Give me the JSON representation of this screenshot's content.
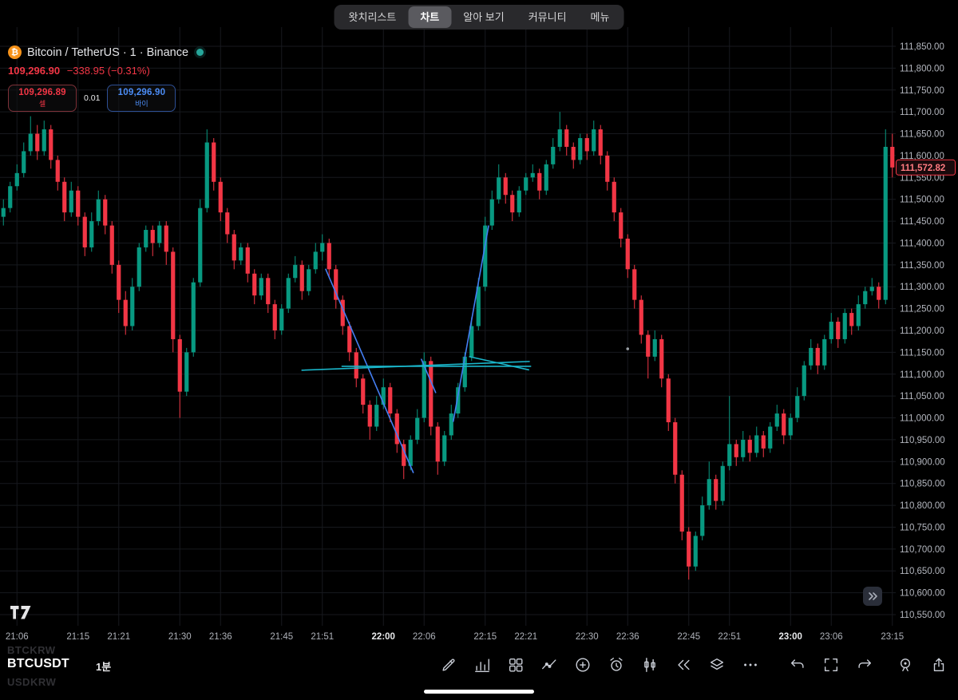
{
  "nav": {
    "items": [
      {
        "label": "왓치리스트"
      },
      {
        "label": "차트"
      },
      {
        "label": "알아 보기"
      },
      {
        "label": "커뮤니티"
      },
      {
        "label": "메뉴"
      }
    ],
    "active_index": 1
  },
  "header": {
    "title": "Bitcoin / TetherUS · 1 · Binance",
    "price": "109,296.90",
    "change": "−338.95 (−0.31%)",
    "sell_price": "109,296.89",
    "sell_label": "셀",
    "spread": "0.01",
    "buy_price": "109,296.90",
    "buy_label": "바이"
  },
  "chart_data": {
    "type": "candlestick",
    "title": "BTCUSDT 1-minute candlestick chart, Binance",
    "up_color": "#089981",
    "down_color": "#f23645",
    "grid_color": "#17191e",
    "start": "21:04",
    "interval_min": 1,
    "price_axis": {
      "min": 110550,
      "max": 111850,
      "step": 50
    },
    "y_axis_labels": [
      "111,850.00",
      "111,800.00",
      "111,750.00",
      "111,700.00",
      "111,650.00",
      "111,600.00",
      "111,550.00",
      "111,500.00",
      "111,450.00",
      "111,400.00",
      "111,350.00",
      "111,300.00",
      "111,250.00",
      "111,200.00",
      "111,150.00",
      "111,100.00",
      "111,050.00",
      "111,000.00",
      "110,950.00",
      "110,900.00",
      "110,850.00",
      "110,800.00",
      "110,750.00",
      "110,700.00",
      "110,650.00",
      "110,600.00",
      "110,550.00"
    ],
    "time_labels": [
      {
        "t": "21:06",
        "m": 2
      },
      {
        "t": "21:15",
        "m": 11
      },
      {
        "t": "21:21",
        "m": 17
      },
      {
        "t": "21:30",
        "m": 26
      },
      {
        "t": "21:36",
        "m": 32
      },
      {
        "t": "21:45",
        "m": 41
      },
      {
        "t": "21:51",
        "m": 47
      },
      {
        "t": "22:00",
        "m": 56,
        "bold": true
      },
      {
        "t": "22:06",
        "m": 62
      },
      {
        "t": "22:15",
        "m": 71
      },
      {
        "t": "22:21",
        "m": 77
      },
      {
        "t": "22:30",
        "m": 86
      },
      {
        "t": "22:36",
        "m": 92
      },
      {
        "t": "22:45",
        "m": 101
      },
      {
        "t": "22:51",
        "m": 107
      },
      {
        "t": "23:00",
        "m": 116,
        "bold": true
      },
      {
        "t": "23:06",
        "m": 122
      },
      {
        "t": "23:15",
        "m": 131
      }
    ],
    "last_price": 111572.82,
    "last_price_label": "111,572.82",
    "candles": [
      [
        111460,
        111500,
        111440,
        111480
      ],
      [
        111480,
        111540,
        111470,
        111530
      ],
      [
        111530,
        111580,
        111520,
        111560
      ],
      [
        111560,
        111630,
        111550,
        111610
      ],
      [
        111610,
        111690,
        111600,
        111650
      ],
      [
        111650,
        111670,
        111590,
        111610
      ],
      [
        111610,
        111680,
        111600,
        111660
      ],
      [
        111660,
        111670,
        111570,
        111590
      ],
      [
        111590,
        111600,
        111520,
        111540
      ],
      [
        111540,
        111550,
        111450,
        111470
      ],
      [
        111470,
        111540,
        111460,
        111520
      ],
      [
        111520,
        111530,
        111440,
        111460
      ],
      [
        111460,
        111470,
        111370,
        111390
      ],
      [
        111390,
        111470,
        111380,
        111450
      ],
      [
        111450,
        111520,
        111440,
        111500
      ],
      [
        111500,
        111510,
        111420,
        111440
      ],
      [
        111440,
        111450,
        111330,
        111350
      ],
      [
        111350,
        111360,
        111240,
        111270
      ],
      [
        111270,
        111290,
        111190,
        111210
      ],
      [
        111210,
        111320,
        111200,
        111300
      ],
      [
        111300,
        111400,
        111290,
        111390
      ],
      [
        111390,
        111440,
        111380,
        111430
      ],
      [
        111430,
        111440,
        111370,
        111400
      ],
      [
        111400,
        111450,
        111390,
        111440
      ],
      [
        111440,
        111450,
        111350,
        111380
      ],
      [
        111380,
        111390,
        111150,
        111180
      ],
      [
        111180,
        111190,
        111000,
        111060
      ],
      [
        111060,
        111160,
        111050,
        111150
      ],
      [
        111150,
        111320,
        111140,
        111310
      ],
      [
        111310,
        111500,
        111300,
        111480
      ],
      [
        111480,
        111660,
        111470,
        111630
      ],
      [
        111630,
        111640,
        111520,
        111540
      ],
      [
        111540,
        111550,
        111450,
        111470
      ],
      [
        111470,
        111480,
        111400,
        111420
      ],
      [
        111420,
        111430,
        111340,
        111360
      ],
      [
        111360,
        111400,
        111350,
        111390
      ],
      [
        111390,
        111400,
        111310,
        111330
      ],
      [
        111330,
        111340,
        111260,
        111280
      ],
      [
        111280,
        111330,
        111270,
        111320
      ],
      [
        111320,
        111330,
        111240,
        111260
      ],
      [
        111260,
        111270,
        111180,
        111200
      ],
      [
        111200,
        111260,
        111190,
        111250
      ],
      [
        111250,
        111330,
        111240,
        111320
      ],
      [
        111320,
        111370,
        111310,
        111350
      ],
      [
        111350,
        111360,
        111270,
        111290
      ],
      [
        111290,
        111350,
        111280,
        111340
      ],
      [
        111340,
        111400,
        111330,
        111380
      ],
      [
        111380,
        111420,
        111360,
        111400
      ],
      [
        111400,
        111410,
        111320,
        111340
      ],
      [
        111340,
        111350,
        111250,
        111270
      ],
      [
        111270,
        111280,
        111190,
        111210
      ],
      [
        111210,
        111220,
        111130,
        111150
      ],
      [
        111150,
        111160,
        111070,
        111090
      ],
      [
        111090,
        111100,
        111010,
        111030
      ],
      [
        111030,
        111040,
        110950,
        110980
      ],
      [
        110980,
        111050,
        110970,
        111030
      ],
      [
        111030,
        111090,
        111020,
        111070
      ],
      [
        111070,
        111080,
        110990,
        111010
      ],
      [
        111010,
        111020,
        110920,
        110940
      ],
      [
        110940,
        110950,
        110860,
        110890
      ],
      [
        110890,
        110960,
        110880,
        110950
      ],
      [
        110950,
        111020,
        110940,
        111000
      ],
      [
        111000,
        111150,
        110990,
        111130
      ],
      [
        111130,
        111140,
        110960,
        110980
      ],
      [
        110980,
        110990,
        110870,
        110900
      ],
      [
        110900,
        110970,
        110890,
        110960
      ],
      [
        110960,
        111030,
        110950,
        111010
      ],
      [
        111010,
        111080,
        111000,
        111070
      ],
      [
        111070,
        111150,
        111060,
        111140
      ],
      [
        111140,
        111230,
        111130,
        111210
      ],
      [
        111210,
        111320,
        111200,
        111300
      ],
      [
        111300,
        111460,
        111290,
        111440
      ],
      [
        111440,
        111520,
        111430,
        111500
      ],
      [
        111500,
        111580,
        111490,
        111550
      ],
      [
        111550,
        111560,
        111490,
        111510
      ],
      [
        111510,
        111520,
        111450,
        111470
      ],
      [
        111470,
        111530,
        111460,
        111520
      ],
      [
        111520,
        111560,
        111510,
        111550
      ],
      [
        111550,
        111580,
        111540,
        111560
      ],
      [
        111560,
        111570,
        111500,
        111520
      ],
      [
        111520,
        111590,
        111510,
        111580
      ],
      [
        111580,
        111640,
        111570,
        111620
      ],
      [
        111620,
        111700,
        111610,
        111660
      ],
      [
        111660,
        111670,
        111600,
        111620
      ],
      [
        111620,
        111630,
        111570,
        111590
      ],
      [
        111590,
        111650,
        111580,
        111640
      ],
      [
        111640,
        111650,
        111590,
        111610
      ],
      [
        111610,
        111680,
        111600,
        111660
      ],
      [
        111660,
        111670,
        111580,
        111600
      ],
      [
        111600,
        111610,
        111520,
        111540
      ],
      [
        111540,
        111550,
        111450,
        111470
      ],
      [
        111470,
        111480,
        111390,
        111410
      ],
      [
        111410,
        111420,
        111320,
        111340
      ],
      [
        111340,
        111350,
        111250,
        111270
      ],
      [
        111270,
        111280,
        111170,
        111190
      ],
      [
        111190,
        111200,
        111090,
        111140
      ],
      [
        111140,
        111200,
        111130,
        111180
      ],
      [
        111180,
        111190,
        111070,
        111090
      ],
      [
        111090,
        111100,
        110970,
        110990
      ],
      [
        110990,
        111000,
        110850,
        110870
      ],
      [
        110870,
        110880,
        110720,
        110740
      ],
      [
        110740,
        110750,
        110630,
        110660
      ],
      [
        110660,
        110740,
        110650,
        110730
      ],
      [
        110730,
        110820,
        110720,
        110800
      ],
      [
        110800,
        110900,
        110790,
        110860
      ],
      [
        110860,
        110870,
        110790,
        110810
      ],
      [
        110810,
        110900,
        110800,
        110890
      ],
      [
        110890,
        111050,
        110880,
        110940
      ],
      [
        110940,
        110950,
        110890,
        110910
      ],
      [
        110910,
        110970,
        110900,
        110950
      ],
      [
        110950,
        110960,
        110900,
        110920
      ],
      [
        110920,
        110980,
        110910,
        110960
      ],
      [
        110960,
        110970,
        110910,
        110930
      ],
      [
        110930,
        110990,
        110920,
        110980
      ],
      [
        110980,
        111030,
        110970,
        111010
      ],
      [
        111010,
        111020,
        110940,
        110960
      ],
      [
        110960,
        111010,
        110950,
        111000
      ],
      [
        111000,
        111070,
        110990,
        111050
      ],
      [
        111050,
        111130,
        111040,
        111120
      ],
      [
        111120,
        111180,
        111110,
        111160
      ],
      [
        111160,
        111170,
        111100,
        111120
      ],
      [
        111120,
        111190,
        111110,
        111180
      ],
      [
        111180,
        111240,
        111170,
        111220
      ],
      [
        111220,
        111230,
        111160,
        111180
      ],
      [
        111180,
        111250,
        111170,
        111240
      ],
      [
        111240,
        111250,
        111190,
        111210
      ],
      [
        111210,
        111280,
        111200,
        111260
      ],
      [
        111260,
        111300,
        111250,
        111290
      ],
      [
        111290,
        111320,
        111280,
        111300
      ],
      [
        111300,
        111310,
        111250,
        111270
      ],
      [
        111270,
        111660,
        111260,
        111620
      ],
      [
        111620,
        111650,
        111550,
        111572.82
      ]
    ],
    "drawings": [
      {
        "type": "trendline",
        "color": "#447ef2",
        "from": [
          47.5,
          111340
        ],
        "to": [
          60.4,
          110875
        ]
      },
      {
        "type": "trendline",
        "color": "#447ef2",
        "from": [
          66.3,
          110992
        ],
        "to": [
          71.5,
          111439
        ]
      },
      {
        "type": "trendline",
        "color": "#447ef2",
        "from": [
          61.6,
          111134
        ],
        "to": [
          63.7,
          111058
        ]
      },
      {
        "type": "trendline",
        "color": "#1ab5c9",
        "from": [
          44.0,
          111109
        ],
        "to": [
          77.5,
          111129
        ]
      },
      {
        "type": "trendline",
        "color": "#1ab5c9",
        "from": [
          49.9,
          111118
        ],
        "to": [
          77.7,
          111118
        ]
      },
      {
        "type": "trendline",
        "color": "#1ab5c9",
        "from": [
          68.7,
          111140
        ],
        "to": [
          77.4,
          111110
        ]
      },
      {
        "type": "dot",
        "color": "#9aa0a6",
        "at": [
          92,
          111158
        ]
      }
    ]
  },
  "footer": {
    "watermark_top": "BTCKRW",
    "symbol": "BTCUSDT",
    "interval_label": "1분",
    "watermark_bottom": "USDKRW",
    "tools": [
      "draw",
      "chart-type",
      "layout",
      "indicators",
      "add",
      "alert",
      "candles",
      "replay",
      "layers",
      "more",
      "undo",
      "fullscreen",
      "redo",
      "snapshot",
      "share"
    ]
  }
}
